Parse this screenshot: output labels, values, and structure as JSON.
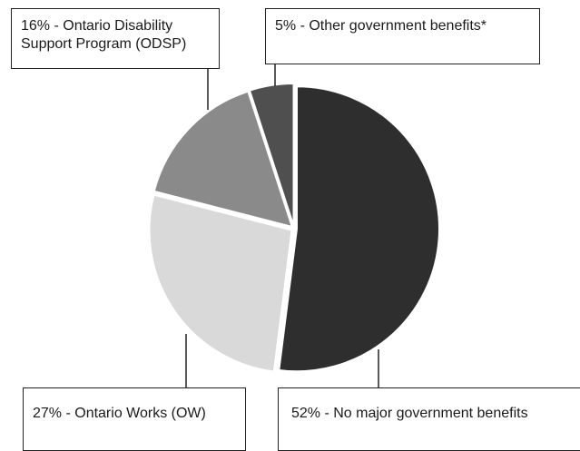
{
  "chart_data": {
    "type": "pie",
    "title": "",
    "slices": [
      {
        "label": "52% - No major government benefits",
        "value": 52,
        "color": "#2e2e2e"
      },
      {
        "label": "27% - Ontario Works (OW)",
        "value": 27,
        "color": "#d9d9d9"
      },
      {
        "label": "16% - Ontario Disability Support Program (ODSP)",
        "value": 16,
        "color": "#8a8a8a"
      },
      {
        "label": "5%  - Other government benefits*",
        "value": 5,
        "color": "#4f4f4f"
      }
    ],
    "legend": "none"
  }
}
